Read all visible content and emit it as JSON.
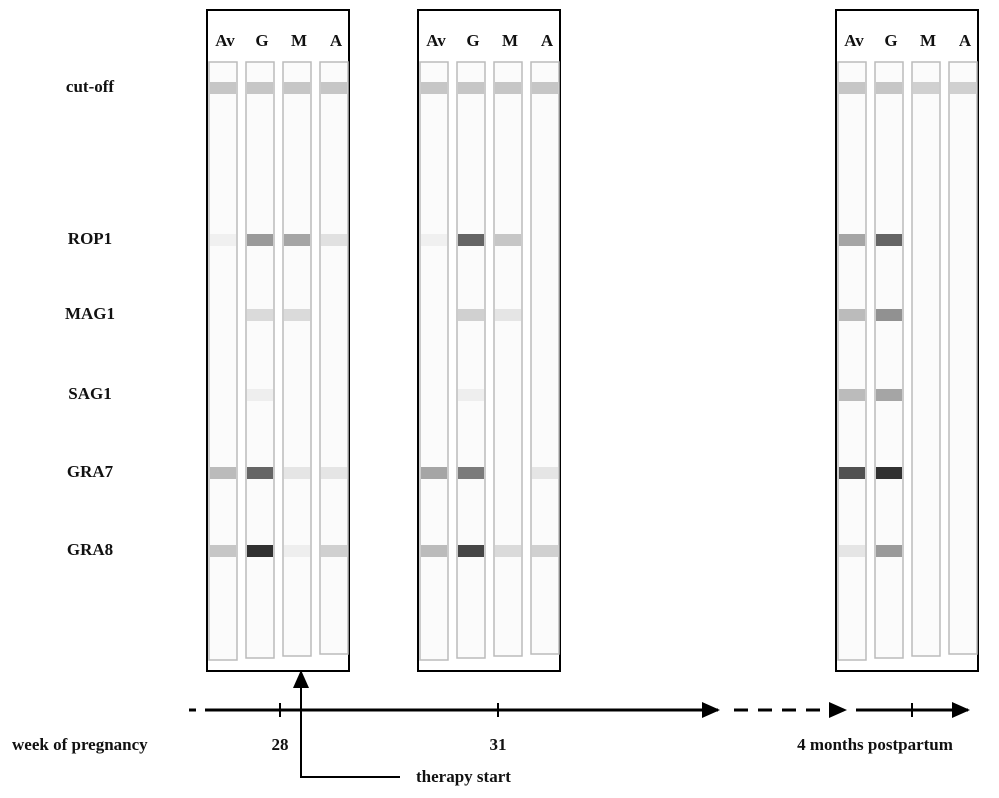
{
  "panels": [
    {
      "lanes": [
        "Av",
        "G",
        "M",
        "A"
      ]
    },
    {
      "lanes": [
        "Av",
        "G",
        "M",
        "A"
      ]
    },
    {
      "lanes": [
        "Av",
        "G",
        "M",
        "A"
      ]
    }
  ],
  "rows": [
    "cut-off",
    "ROP1",
    "MAG1",
    "SAG1",
    "GRA7",
    "GRA8"
  ],
  "timeline": {
    "label": "week of pregnancy",
    "ticks": [
      "28",
      "31",
      "4 months postpartum"
    ],
    "therapy": "therapy start"
  }
}
